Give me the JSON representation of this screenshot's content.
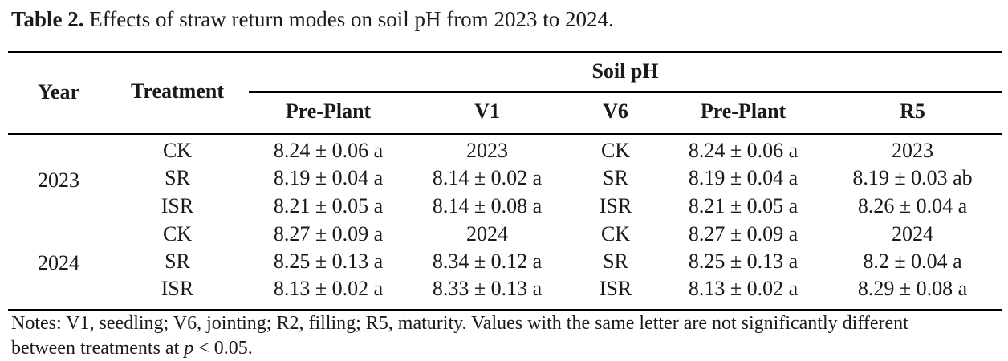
{
  "caption": {
    "label": "Table 2.",
    "text": "Effects of straw return modes on soil pH from 2023 to 2024."
  },
  "headers": {
    "year": "Year",
    "treatment": "Treatment",
    "group": "Soil pH",
    "columns": [
      "Pre-Plant",
      "V1",
      "V6",
      "Pre-Plant",
      "R5"
    ]
  },
  "rows": [
    {
      "year": "",
      "cells": [
        "CK",
        "8.24 ± 0.06 a",
        "2023",
        "CK",
        "8.24 ± 0.06 a",
        "2023"
      ]
    },
    {
      "year": "2023",
      "cells": [
        "SR",
        "8.19 ± 0.04 a",
        "8.14 ± 0.02 a",
        "SR",
        "8.19 ± 0.04 a",
        "8.19 ± 0.03 ab"
      ]
    },
    {
      "year": "",
      "cells": [
        "ISR",
        "8.21 ± 0.05 a",
        "8.14 ± 0.08 a",
        "ISR",
        "8.21 ± 0.05 a",
        "8.26 ± 0.04 a"
      ]
    },
    {
      "year": "",
      "cells": [
        "CK",
        "8.27 ± 0.09 a",
        "2024",
        "CK",
        "8.27 ± 0.09 a",
        "2024"
      ]
    },
    {
      "year": "2024",
      "cells": [
        "SR",
        "8.25 ± 0.13 a",
        "8.34 ± 0.12 a",
        "SR",
        "8.25 ± 0.13 a",
        "8.2 ± 0.04 a"
      ]
    },
    {
      "year": "",
      "cells": [
        "ISR",
        "8.13 ± 0.02 a",
        "8.33 ± 0.13 a",
        "ISR",
        "8.13 ± 0.02 a",
        "8.29 ± 0.08 a"
      ]
    }
  ],
  "notes": {
    "line1": "Notes: V1, seedling; V6, jointing; R2, filling; R5, maturity. Values with the same letter are not significantly different",
    "line2_prefix": "between treatments at",
    "p_symbol": "p",
    "line2_suffix": "< 0.05."
  }
}
